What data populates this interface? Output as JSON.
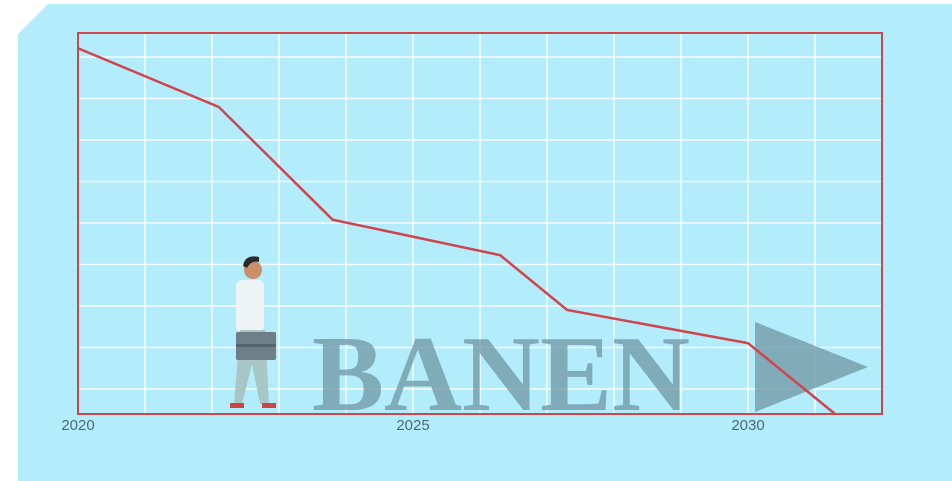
{
  "chart_data": {
    "type": "line",
    "x": [
      2020,
      2022.1,
      2023.8,
      2026.3,
      2027.3,
      2030,
      2031.3
    ],
    "values": [
      96,
      80.6,
      51,
      41.7,
      27.3,
      18.6,
      0
    ],
    "color": "#d0454c",
    "xlim": [
      2020,
      2032
    ],
    "ylim": [
      0,
      100
    ],
    "xticks": [
      2020,
      2025,
      2030
    ],
    "grid": true,
    "watermark": "BANEN"
  }
}
